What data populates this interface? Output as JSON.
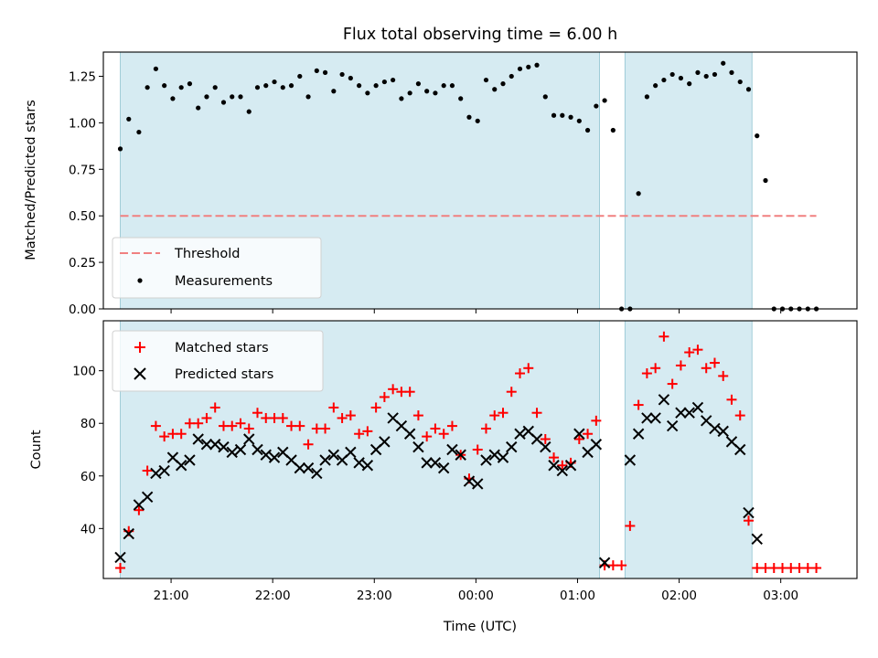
{
  "chart_data": [
    {
      "type": "scatter",
      "title": "Flux total observing time = 6.00 h",
      "xlabel": "",
      "ylabel": "Matched/Predicted stars",
      "ylim": [
        0,
        1.38
      ],
      "yticks": [
        "0.00",
        "0.25",
        "0.50",
        "0.75",
        "1.00",
        "1.25"
      ],
      "xlim": [
        "20:20",
        "03:45"
      ],
      "threshold": 0.5,
      "observing_windows": [
        [
          "20:30",
          "01:13"
        ],
        [
          "01:28",
          "02:43"
        ]
      ],
      "legend": {
        "placement": "lower-left",
        "entries": [
          "Threshold",
          "Measurements"
        ]
      },
      "series": [
        {
          "name": "Measurements",
          "x": [
            "20:30",
            "20:35",
            "20:41",
            "20:46",
            "20:51",
            "20:56",
            "21:01",
            "21:06",
            "21:11",
            "21:16",
            "21:21",
            "21:26",
            "21:31",
            "21:36",
            "21:41",
            "21:46",
            "21:51",
            "21:56",
            "22:01",
            "22:06",
            "22:11",
            "22:16",
            "22:21",
            "22:26",
            "22:31",
            "22:36",
            "22:41",
            "22:46",
            "22:51",
            "22:56",
            "23:01",
            "23:06",
            "23:11",
            "23:16",
            "23:21",
            "23:26",
            "23:31",
            "23:36",
            "23:41",
            "23:46",
            "23:51",
            "23:56",
            "00:01",
            "00:06",
            "00:11",
            "00:16",
            "00:21",
            "00:26",
            "00:31",
            "00:36",
            "00:41",
            "00:46",
            "00:51",
            "00:56",
            "01:01",
            "01:06",
            "01:11",
            "01:16",
            "01:21",
            "01:26",
            "01:31",
            "01:36",
            "01:41",
            "01:46",
            "01:51",
            "01:56",
            "02:01",
            "02:06",
            "02:11",
            "02:16",
            "02:21",
            "02:26",
            "02:31",
            "02:36",
            "02:41",
            "02:46",
            "02:51",
            "02:56",
            "03:01",
            "03:06",
            "03:11",
            "03:16",
            "03:21"
          ],
          "y": [
            0.86,
            1.02,
            0.95,
            1.19,
            1.29,
            1.2,
            1.13,
            1.19,
            1.21,
            1.08,
            1.14,
            1.19,
            1.11,
            1.14,
            1.14,
            1.06,
            1.19,
            1.2,
            1.22,
            1.19,
            1.2,
            1.25,
            1.14,
            1.28,
            1.27,
            1.17,
            1.26,
            1.24,
            1.2,
            1.16,
            1.2,
            1.22,
            1.23,
            1.13,
            1.16,
            1.21,
            1.17,
            1.16,
            1.2,
            1.2,
            1.13,
            1.03,
            1.01,
            1.23,
            1.18,
            1.21,
            1.25,
            1.29,
            1.3,
            1.31,
            1.14,
            1.04,
            1.04,
            1.03,
            1.01,
            0.96,
            1.09,
            1.12,
            0.96,
            0.0,
            0.0,
            0.62,
            1.14,
            1.2,
            1.23,
            1.26,
            1.24,
            1.21,
            1.27,
            1.25,
            1.26,
            1.32,
            1.27,
            1.22,
            1.18,
            0.93,
            0.69,
            0.0,
            0.0,
            0.0,
            0.0,
            0.0,
            0.0
          ]
        }
      ]
    },
    {
      "type": "scatter",
      "title": "",
      "xlabel": "Time (UTC)",
      "ylabel": "Count",
      "ylim": [
        21,
        119
      ],
      "yticks": [
        "40",
        "60",
        "80",
        "100"
      ],
      "xlim": [
        "20:20",
        "03:45"
      ],
      "xticks": [
        "21:00",
        "22:00",
        "23:00",
        "00:00",
        "01:00",
        "02:00",
        "03:00"
      ],
      "observing_windows": [
        [
          "20:30",
          "01:13"
        ],
        [
          "01:28",
          "02:43"
        ]
      ],
      "legend": {
        "placement": "top-left",
        "entries": [
          "Matched stars",
          "Predicted stars"
        ]
      },
      "series": [
        {
          "name": "Matched stars",
          "color": "#ff0000",
          "marker": "plus",
          "x": [
            "20:30",
            "20:35",
            "20:41",
            "20:46",
            "20:51",
            "20:56",
            "21:01",
            "21:06",
            "21:11",
            "21:16",
            "21:21",
            "21:26",
            "21:31",
            "21:36",
            "21:41",
            "21:46",
            "21:51",
            "21:56",
            "22:01",
            "22:06",
            "22:11",
            "22:16",
            "22:21",
            "22:26",
            "22:31",
            "22:36",
            "22:41",
            "22:46",
            "22:51",
            "22:56",
            "23:01",
            "23:06",
            "23:11",
            "23:16",
            "23:21",
            "23:26",
            "23:31",
            "23:36",
            "23:41",
            "23:46",
            "23:51",
            "23:56",
            "00:01",
            "00:06",
            "00:11",
            "00:16",
            "00:21",
            "00:26",
            "00:31",
            "00:36",
            "00:41",
            "00:46",
            "00:51",
            "00:56",
            "01:01",
            "01:06",
            "01:11",
            "01:16",
            "01:21",
            "01:26",
            "01:31",
            "01:36",
            "01:41",
            "01:46",
            "01:51",
            "01:56",
            "02:01",
            "02:06",
            "02:11",
            "02:16",
            "02:21",
            "02:26",
            "02:31",
            "02:36",
            "02:41",
            "02:46",
            "02:51",
            "02:56",
            "03:01",
            "03:06",
            "03:11",
            "03:16",
            "03:21"
          ],
          "y": [
            25,
            39,
            47,
            62,
            79,
            75,
            76,
            76,
            80,
            80,
            82,
            86,
            79,
            79,
            80,
            78,
            84,
            82,
            82,
            82,
            79,
            79,
            72,
            78,
            78,
            86,
            82,
            83,
            76,
            77,
            86,
            90,
            93,
            92,
            92,
            83,
            75,
            78,
            76,
            79,
            68,
            59,
            70,
            78,
            83,
            84,
            92,
            99,
            101,
            84,
            74,
            67,
            64,
            65,
            74,
            76,
            81,
            26,
            26,
            26,
            41,
            87,
            99,
            101,
            113,
            95,
            102,
            107,
            108,
            101,
            103,
            98,
            89,
            83,
            43,
            25,
            25,
            25,
            25,
            25,
            25,
            25,
            25
          ]
        },
        {
          "name": "Predicted stars",
          "color": "#000000",
          "marker": "x",
          "x": [
            "20:30",
            "20:35",
            "20:41",
            "20:46",
            "20:51",
            "20:56",
            "21:01",
            "21:06",
            "21:11",
            "21:16",
            "21:21",
            "21:26",
            "21:31",
            "21:36",
            "21:41",
            "21:46",
            "21:51",
            "21:56",
            "22:01",
            "22:06",
            "22:11",
            "22:16",
            "22:21",
            "22:26",
            "22:31",
            "22:36",
            "22:41",
            "22:46",
            "22:51",
            "22:56",
            "23:01",
            "23:06",
            "23:11",
            "23:16",
            "23:21",
            "23:26",
            "23:31",
            "23:36",
            "23:41",
            "23:46",
            "23:51",
            "23:56",
            "00:01",
            "00:06",
            "00:11",
            "00:16",
            "00:21",
            "00:26",
            "00:31",
            "00:36",
            "00:41",
            "00:46",
            "00:51",
            "00:56",
            "01:01",
            "01:06",
            "01:11",
            "01:16",
            "01:31",
            "01:36",
            "01:41",
            "01:46",
            "01:51",
            "01:56",
            "02:01",
            "02:06",
            "02:11",
            "02:16",
            "02:21",
            "02:26",
            "02:31",
            "02:36",
            "02:41",
            "02:46"
          ],
          "y": [
            29,
            38,
            49,
            52,
            61,
            62,
            67,
            64,
            66,
            74,
            72,
            72,
            71,
            69,
            70,
            74,
            70,
            68,
            67,
            69,
            66,
            63,
            63,
            61,
            66,
            68,
            66,
            69,
            65,
            64,
            70,
            73,
            82,
            79,
            76,
            71,
            65,
            65,
            63,
            70,
            68,
            58,
            57,
            66,
            68,
            67,
            71,
            76,
            77,
            74,
            71,
            64,
            62,
            64,
            76,
            69,
            72,
            27,
            66,
            76,
            82,
            82,
            89,
            79,
            84,
            84,
            86,
            81,
            78,
            77,
            73,
            70,
            46,
            36
          ]
        }
      ]
    }
  ]
}
